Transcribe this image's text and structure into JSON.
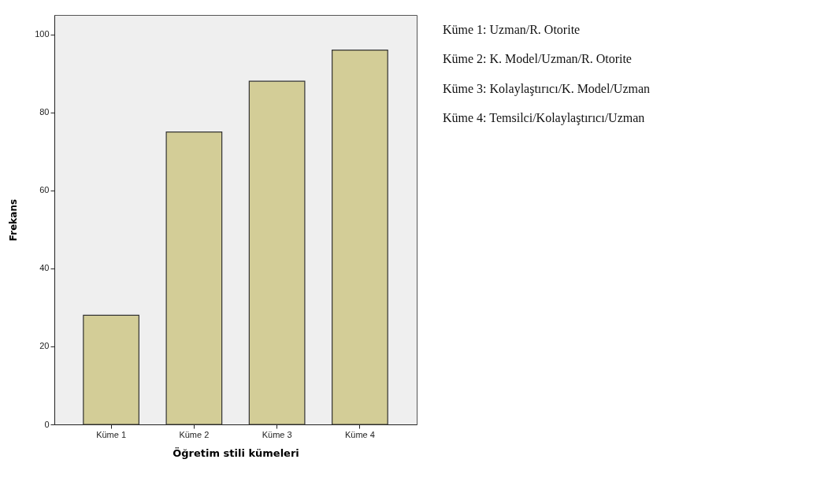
{
  "chart_data": {
    "type": "bar",
    "xlabel": "Öğretim stili kümeleri",
    "ylabel": "Frekans",
    "categories": [
      "Küme 1",
      "Küme 2",
      "Küme 3",
      "Küme 4"
    ],
    "values": [
      28,
      75,
      88,
      96
    ],
    "color": "#d3cd97",
    "ylim": [
      0,
      105
    ],
    "yticks": [
      0,
      20,
      40,
      60,
      80,
      100
    ],
    "grid": false,
    "annotations": [
      "Küme 1: Uzman/R. Otorite",
      "Küme 2: K. Model/Uzman/R. Otorite",
      "Küme 3: Kolaylaştırıcı/K. Model/Uzman",
      "Küme 4: Temsilci/Kolaylaştırıcı/Uzman"
    ]
  }
}
